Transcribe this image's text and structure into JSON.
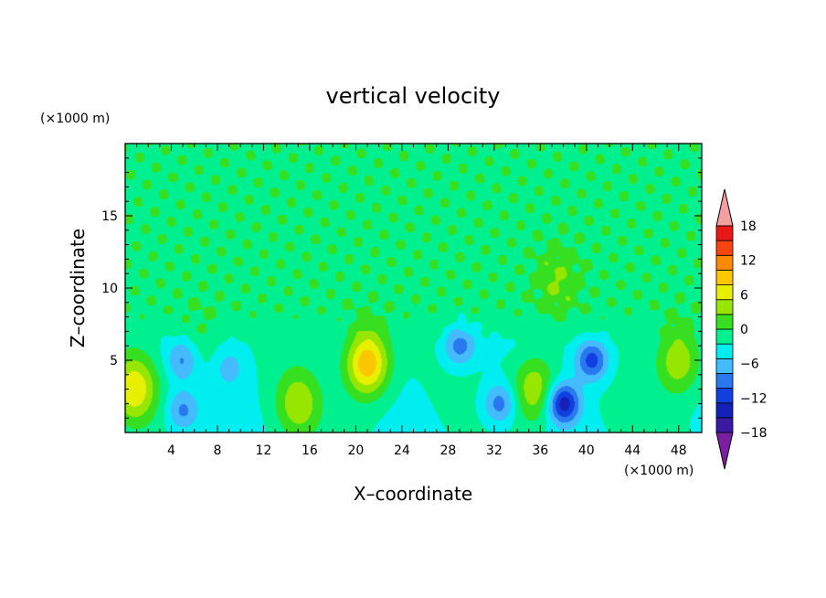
{
  "chart_data": {
    "type": "heatmap",
    "title": "vertical velocity",
    "xlabel": "X–coordinate",
    "ylabel": "Z–coordinate",
    "x_units": "(×1000 m)",
    "y_units": "(×1000 m)",
    "xlim": [
      0,
      50
    ],
    "ylim": [
      0,
      20
    ],
    "x_ticks": [
      4,
      8,
      12,
      16,
      20,
      24,
      28,
      32,
      36,
      40,
      44,
      48
    ],
    "y_ticks": [
      5,
      10,
      15
    ],
    "colorbar": {
      "levels": [
        -21,
        -18,
        -15,
        -12,
        -9,
        -6,
        -3,
        0,
        3,
        6,
        9,
        12,
        15,
        18,
        21
      ],
      "tick_labels": [
        "18",
        "12",
        "6",
        "0",
        "−6",
        "−12",
        "−18"
      ],
      "tick_values": [
        18,
        12,
        6,
        0,
        -6,
        -12,
        -18
      ],
      "colors": [
        "#7a1fa2",
        "#3a1aa0",
        "#1420b8",
        "#1040e0",
        "#2a78f0",
        "#44bcfc",
        "#00eef0",
        "#00f090",
        "#36e020",
        "#96e600",
        "#e6f000",
        "#fcc600",
        "#fc8a00",
        "#f84410",
        "#e81818",
        "#f5a0a0"
      ],
      "extends": "both"
    },
    "features": [
      {
        "sign": "up",
        "x": 0.8,
        "z": 3.0,
        "peak": 11
      },
      {
        "sign": "up",
        "x": 21.0,
        "z": 4.8,
        "peak": 15
      },
      {
        "sign": "up",
        "x": 15.0,
        "z": 2.0,
        "peak": 8
      },
      {
        "sign": "up",
        "x": 48.0,
        "z": 5.0,
        "peak": 9
      },
      {
        "sign": "up",
        "x": 35.5,
        "z": 3.0,
        "peak": 9
      },
      {
        "sign": "up",
        "x": 6.5,
        "z": 6.0,
        "peak": 3
      },
      {
        "sign": "up",
        "x": 37.5,
        "z": 10.5,
        "peak": 4
      },
      {
        "sign": "down",
        "x": 38.0,
        "z": 2.0,
        "peak": -14
      },
      {
        "sign": "down",
        "x": 40.5,
        "z": 5.0,
        "peak": -11
      },
      {
        "sign": "down",
        "x": 29.0,
        "z": 6.0,
        "peak": -8
      },
      {
        "sign": "down",
        "x": 32.5,
        "z": 2.0,
        "peak": -8
      },
      {
        "sign": "down",
        "x": 5.0,
        "z": 1.5,
        "peak": -7
      },
      {
        "sign": "down",
        "x": 5.0,
        "z": 5.0,
        "peak": -7
      },
      {
        "sign": "down",
        "x": 9.0,
        "z": 4.5,
        "peak": -4
      }
    ]
  }
}
